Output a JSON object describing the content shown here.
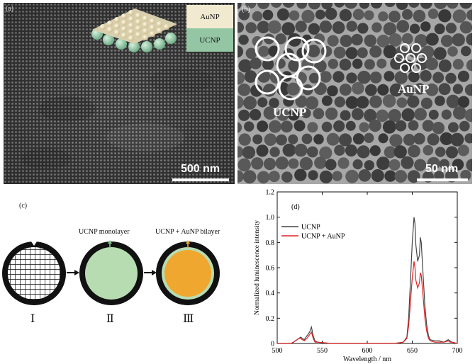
{
  "panel_a": {
    "label": "(a)",
    "legend": [
      {
        "text": "AuNP",
        "color": "#f2ead0"
      },
      {
        "text": "UCNP",
        "color": "#94c6a4"
      }
    ],
    "scale_bar": "500 nm"
  },
  "panel_b": {
    "label": "(b)",
    "ucnp_label": "UCNP",
    "aunp_label": "AuNP",
    "scale_bar": "50 nm"
  },
  "panel_c": {
    "label": "(c)",
    "steps": [
      {
        "roman": "Ⅰ",
        "caption": ""
      },
      {
        "roman": "Ⅱ",
        "caption": "UCNP monolayer"
      },
      {
        "roman": "Ⅲ",
        "caption": "UCNP + AuNP bilayer"
      }
    ],
    "colors": {
      "ucnp": "#b8dcb2",
      "aunp": "#f0a72f",
      "ring": "#111111"
    }
  },
  "chart_data": {
    "type": "line",
    "panel_label": "(d)",
    "xlabel": "Wavelength / nm",
    "ylabel": "Normalized luminescence intensity",
    "xlim": [
      500,
      700
    ],
    "ylim": [
      0,
      1.2
    ],
    "xticks": [
      "500",
      "550",
      "600",
      "650",
      "700"
    ],
    "yticks": [
      "0",
      "0.2",
      "0.4",
      "0.6",
      "0.8",
      "1.0",
      "1.2"
    ],
    "legend_position": "top-left",
    "series": [
      {
        "name": "UCNP",
        "color": "#444444",
        "x": [
          500,
          515,
          518,
          520,
          522,
          524,
          526,
          528,
          530,
          533,
          536,
          538,
          540,
          542,
          545,
          560,
          600,
          630,
          640,
          644,
          646,
          648,
          650,
          652,
          653,
          654,
          656,
          658,
          659,
          660,
          662,
          664,
          666,
          668,
          670,
          675,
          680,
          685,
          690,
          692,
          694,
          700
        ],
        "y": [
          0,
          0,
          0.01,
          0.02,
          0.03,
          0.04,
          0.05,
          0.04,
          0.03,
          0.06,
          0.09,
          0.13,
          0.06,
          0.02,
          0.01,
          0,
          0,
          0,
          0.01,
          0.05,
          0.2,
          0.5,
          0.8,
          1.0,
          0.95,
          0.78,
          0.65,
          0.7,
          0.84,
          0.8,
          0.55,
          0.3,
          0.15,
          0.06,
          0.03,
          0.02,
          0.02,
          0.01,
          0.03,
          0.02,
          0.01,
          0
        ]
      },
      {
        "name": "UCNP + AuNP",
        "color": "#e02222",
        "x": [
          500,
          515,
          518,
          520,
          522,
          524,
          526,
          528,
          530,
          533,
          536,
          538,
          540,
          542,
          545,
          560,
          600,
          630,
          640,
          644,
          646,
          648,
          650,
          652,
          653,
          654,
          656,
          658,
          659,
          660,
          662,
          664,
          666,
          668,
          670,
          675,
          680,
          685,
          690,
          692,
          694,
          700
        ],
        "y": [
          0,
          0,
          0.01,
          0.02,
          0.03,
          0.04,
          0.04,
          0.03,
          0.02,
          0.04,
          0.07,
          0.09,
          0.04,
          0.01,
          0.01,
          0,
          0,
          0,
          0.01,
          0.04,
          0.14,
          0.33,
          0.52,
          0.65,
          0.6,
          0.5,
          0.44,
          0.48,
          0.56,
          0.54,
          0.38,
          0.2,
          0.1,
          0.04,
          0.02,
          0.01,
          0.01,
          0.01,
          0.02,
          0.01,
          0.01,
          0
        ]
      }
    ]
  }
}
